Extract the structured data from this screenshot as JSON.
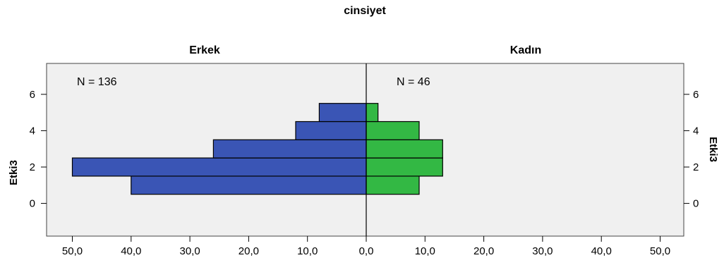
{
  "chart_data": {
    "type": "bar",
    "orientation": "horizontal",
    "layout": "back-to-back population pyramid",
    "title": "cinsiyet",
    "ylabel": "Etki3",
    "y_ticks": [
      0,
      2,
      4,
      6
    ],
    "ylim": [
      -1.8,
      7.7
    ],
    "x_ticks": [
      "50,0",
      "40,0",
      "30,0",
      "20,0",
      "10,0",
      "0,0",
      "10,0",
      "20,0",
      "30,0",
      "40,0",
      "50,0"
    ],
    "xlim": [
      0,
      54
    ],
    "bin_width": 1,
    "grid": false,
    "colors": {
      "plot_bg": "#f0f0f0",
      "bar_stroke": "#000000"
    },
    "panels": [
      {
        "name": "Erkek",
        "n_label": "N = 136",
        "side": "left",
        "color": "#3a55b5",
        "bins": [
          {
            "y": 1,
            "count": 40
          },
          {
            "y": 2,
            "count": 50
          },
          {
            "y": 3,
            "count": 26
          },
          {
            "y": 4,
            "count": 12
          },
          {
            "y": 5,
            "count": 8
          }
        ]
      },
      {
        "name": "Kadın",
        "n_label": "N = 46",
        "side": "right",
        "color": "#33b844",
        "bins": [
          {
            "y": 1,
            "count": 9
          },
          {
            "y": 2,
            "count": 13
          },
          {
            "y": 3,
            "count": 13
          },
          {
            "y": 4,
            "count": 9
          },
          {
            "y": 5,
            "count": 2
          }
        ]
      }
    ]
  }
}
